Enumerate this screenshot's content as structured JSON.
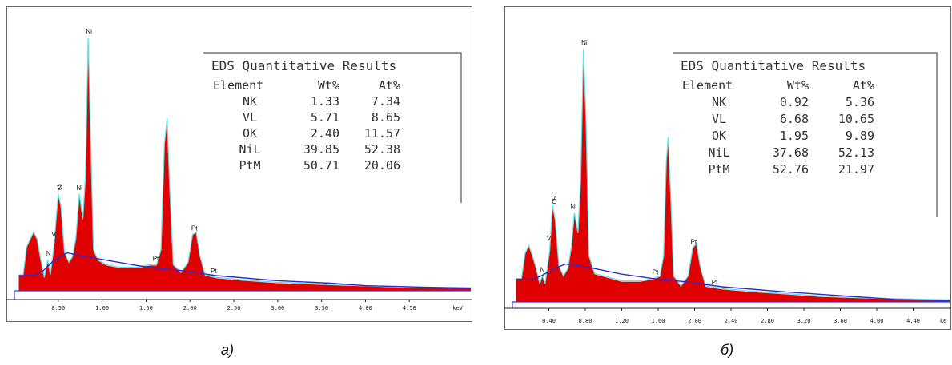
{
  "chart_data": [
    {
      "type": "area",
      "caption": "a)",
      "x_unit": "keV",
      "xlim": [
        0,
        5.2
      ],
      "x_ticks": [
        "0.50",
        "1.00",
        "1.50",
        "2.00",
        "2.50",
        "3.00",
        "3.50",
        "4.00",
        "4.50",
        "keV"
      ],
      "x_tick_values": [
        0.5,
        1.0,
        1.5,
        2.0,
        2.5,
        3.0,
        3.5,
        4.0,
        4.5,
        5.05
      ],
      "peak_labels": [
        {
          "text": "N",
          "x": 0.39
        },
        {
          "text": "O",
          "x": 0.52
        },
        {
          "text": "V",
          "x": 0.45
        },
        {
          "text": "V",
          "x": 0.51
        },
        {
          "text": "Ni",
          "x": 0.74
        },
        {
          "text": "Ni",
          "x": 0.85
        },
        {
          "text": "Pt",
          "x": 1.61
        },
        {
          "text": "Pt",
          "x": 2.05
        },
        {
          "text": "Pt",
          "x": 2.27
        }
      ],
      "spectrum": [
        [
          0.05,
          0.06
        ],
        [
          0.1,
          0.06
        ],
        [
          0.14,
          0.17
        ],
        [
          0.18,
          0.2
        ],
        [
          0.22,
          0.23
        ],
        [
          0.26,
          0.2
        ],
        [
          0.3,
          0.12
        ],
        [
          0.34,
          0.05
        ],
        [
          0.38,
          0.12
        ],
        [
          0.41,
          0.06
        ],
        [
          0.45,
          0.17
        ],
        [
          0.5,
          0.38
        ],
        [
          0.53,
          0.33
        ],
        [
          0.57,
          0.15
        ],
        [
          0.62,
          0.11
        ],
        [
          0.66,
          0.13
        ],
        [
          0.7,
          0.2
        ],
        [
          0.74,
          0.38
        ],
        [
          0.78,
          0.28
        ],
        [
          0.81,
          0.45
        ],
        [
          0.84,
          1.0
        ],
        [
          0.87,
          0.58
        ],
        [
          0.9,
          0.16
        ],
        [
          0.95,
          0.12
        ],
        [
          1.05,
          0.1
        ],
        [
          1.2,
          0.09
        ],
        [
          1.4,
          0.09
        ],
        [
          1.55,
          0.1
        ],
        [
          1.62,
          0.1
        ],
        [
          1.67,
          0.16
        ],
        [
          1.71,
          0.58
        ],
        [
          1.74,
          0.68
        ],
        [
          1.77,
          0.4
        ],
        [
          1.81,
          0.1
        ],
        [
          1.9,
          0.07
        ],
        [
          1.98,
          0.11
        ],
        [
          2.03,
          0.22
        ],
        [
          2.07,
          0.23
        ],
        [
          2.11,
          0.14
        ],
        [
          2.17,
          0.06
        ],
        [
          2.3,
          0.05
        ],
        [
          2.6,
          0.04
        ],
        [
          3.0,
          0.03
        ],
        [
          3.4,
          0.025
        ],
        [
          3.8,
          0.02
        ],
        [
          4.2,
          0.015
        ],
        [
          4.6,
          0.01
        ],
        [
          5.2,
          0.01
        ]
      ],
      "background": [
        [
          0.05,
          0.06
        ],
        [
          0.22,
          0.06
        ],
        [
          0.33,
          0.08
        ],
        [
          0.45,
          0.12
        ],
        [
          0.6,
          0.15
        ],
        [
          0.9,
          0.13
        ],
        [
          1.4,
          0.1
        ],
        [
          1.6,
          0.09
        ],
        [
          1.9,
          0.08
        ],
        [
          2.3,
          0.06
        ],
        [
          3.0,
          0.04
        ],
        [
          3.6,
          0.03
        ],
        [
          4.0,
          0.02
        ],
        [
          4.6,
          0.015
        ],
        [
          5.2,
          0.01
        ]
      ],
      "table": {
        "title": "EDS Quantitative Results",
        "headers": [
          "Element",
          "Wt%",
          "At%"
        ],
        "rows": [
          [
            "NK",
            "1.33",
            "7.34"
          ],
          [
            "VL",
            "5.71",
            "8.65"
          ],
          [
            "OK",
            "2.40",
            "11.57"
          ],
          [
            "NiL",
            "39.85",
            "52.38"
          ],
          [
            "PtM",
            "50.71",
            "20.06"
          ]
        ]
      }
    },
    {
      "type": "area",
      "caption": "б)",
      "x_unit": "ke",
      "xlim": [
        0,
        4.8
      ],
      "x_ticks": [
        "0.40",
        "0.80",
        "1.20",
        "1.60",
        "2.00",
        "2.40",
        "2.80",
        "3.20",
        "3.60",
        "4.00",
        "4.40",
        "ke"
      ],
      "x_tick_values": [
        0.4,
        0.8,
        1.2,
        1.6,
        2.0,
        2.4,
        2.8,
        3.2,
        3.6,
        4.0,
        4.4,
        4.73
      ],
      "peak_labels": [
        {
          "text": "N",
          "x": 0.33
        },
        {
          "text": "O",
          "x": 0.46
        },
        {
          "text": "V",
          "x": 0.4
        },
        {
          "text": "V",
          "x": 0.45
        },
        {
          "text": "Ni",
          "x": 0.67
        },
        {
          "text": "Ni",
          "x": 0.79
        },
        {
          "text": "Pt",
          "x": 1.57
        },
        {
          "text": "Pt",
          "x": 1.99
        },
        {
          "text": "Pt",
          "x": 2.22
        }
      ],
      "spectrum": [
        [
          0.04,
          0.09
        ],
        [
          0.1,
          0.09
        ],
        [
          0.14,
          0.19
        ],
        [
          0.18,
          0.22
        ],
        [
          0.22,
          0.18
        ],
        [
          0.26,
          0.13
        ],
        [
          0.3,
          0.07
        ],
        [
          0.33,
          0.1
        ],
        [
          0.36,
          0.07
        ],
        [
          0.41,
          0.2
        ],
        [
          0.44,
          0.38
        ],
        [
          0.47,
          0.32
        ],
        [
          0.51,
          0.14
        ],
        [
          0.56,
          0.1
        ],
        [
          0.61,
          0.13
        ],
        [
          0.65,
          0.22
        ],
        [
          0.68,
          0.35
        ],
        [
          0.72,
          0.27
        ],
        [
          0.75,
          0.48
        ],
        [
          0.78,
          1.0
        ],
        [
          0.81,
          0.7
        ],
        [
          0.84,
          0.18
        ],
        [
          0.9,
          0.11
        ],
        [
          1.0,
          0.1
        ],
        [
          1.2,
          0.08
        ],
        [
          1.4,
          0.08
        ],
        [
          1.55,
          0.09
        ],
        [
          1.62,
          0.1
        ],
        [
          1.66,
          0.18
        ],
        [
          1.69,
          0.55
        ],
        [
          1.71,
          0.65
        ],
        [
          1.74,
          0.4
        ],
        [
          1.77,
          0.1
        ],
        [
          1.85,
          0.06
        ],
        [
          1.93,
          0.1
        ],
        [
          1.98,
          0.21
        ],
        [
          2.02,
          0.23
        ],
        [
          2.06,
          0.14
        ],
        [
          2.12,
          0.06
        ],
        [
          2.3,
          0.05
        ],
        [
          2.6,
          0.04
        ],
        [
          3.0,
          0.03
        ],
        [
          3.4,
          0.02
        ],
        [
          3.8,
          0.015
        ],
        [
          4.2,
          0.01
        ],
        [
          4.8,
          0.005
        ]
      ],
      "background": [
        [
          0.04,
          0.09
        ],
        [
          0.2,
          0.09
        ],
        [
          0.3,
          0.1
        ],
        [
          0.45,
          0.13
        ],
        [
          0.58,
          0.15
        ],
        [
          0.8,
          0.14
        ],
        [
          1.2,
          0.11
        ],
        [
          1.6,
          0.09
        ],
        [
          1.9,
          0.08
        ],
        [
          2.3,
          0.06
        ],
        [
          3.0,
          0.04
        ],
        [
          3.6,
          0.025
        ],
        [
          4.2,
          0.01
        ],
        [
          4.8,
          0.005
        ]
      ],
      "table": {
        "title": "EDS Quantitative Results",
        "headers": [
          "Element",
          "Wt%",
          "At%"
        ],
        "rows": [
          [
            "NK",
            "0.92",
            "5.36"
          ],
          [
            "VL",
            "6.68",
            "10.65"
          ],
          [
            "OK",
            "1.95",
            "9.89"
          ],
          [
            "NiL",
            "37.68",
            "52.13"
          ],
          [
            "PtM",
            "52.76",
            "21.97"
          ]
        ]
      }
    }
  ]
}
